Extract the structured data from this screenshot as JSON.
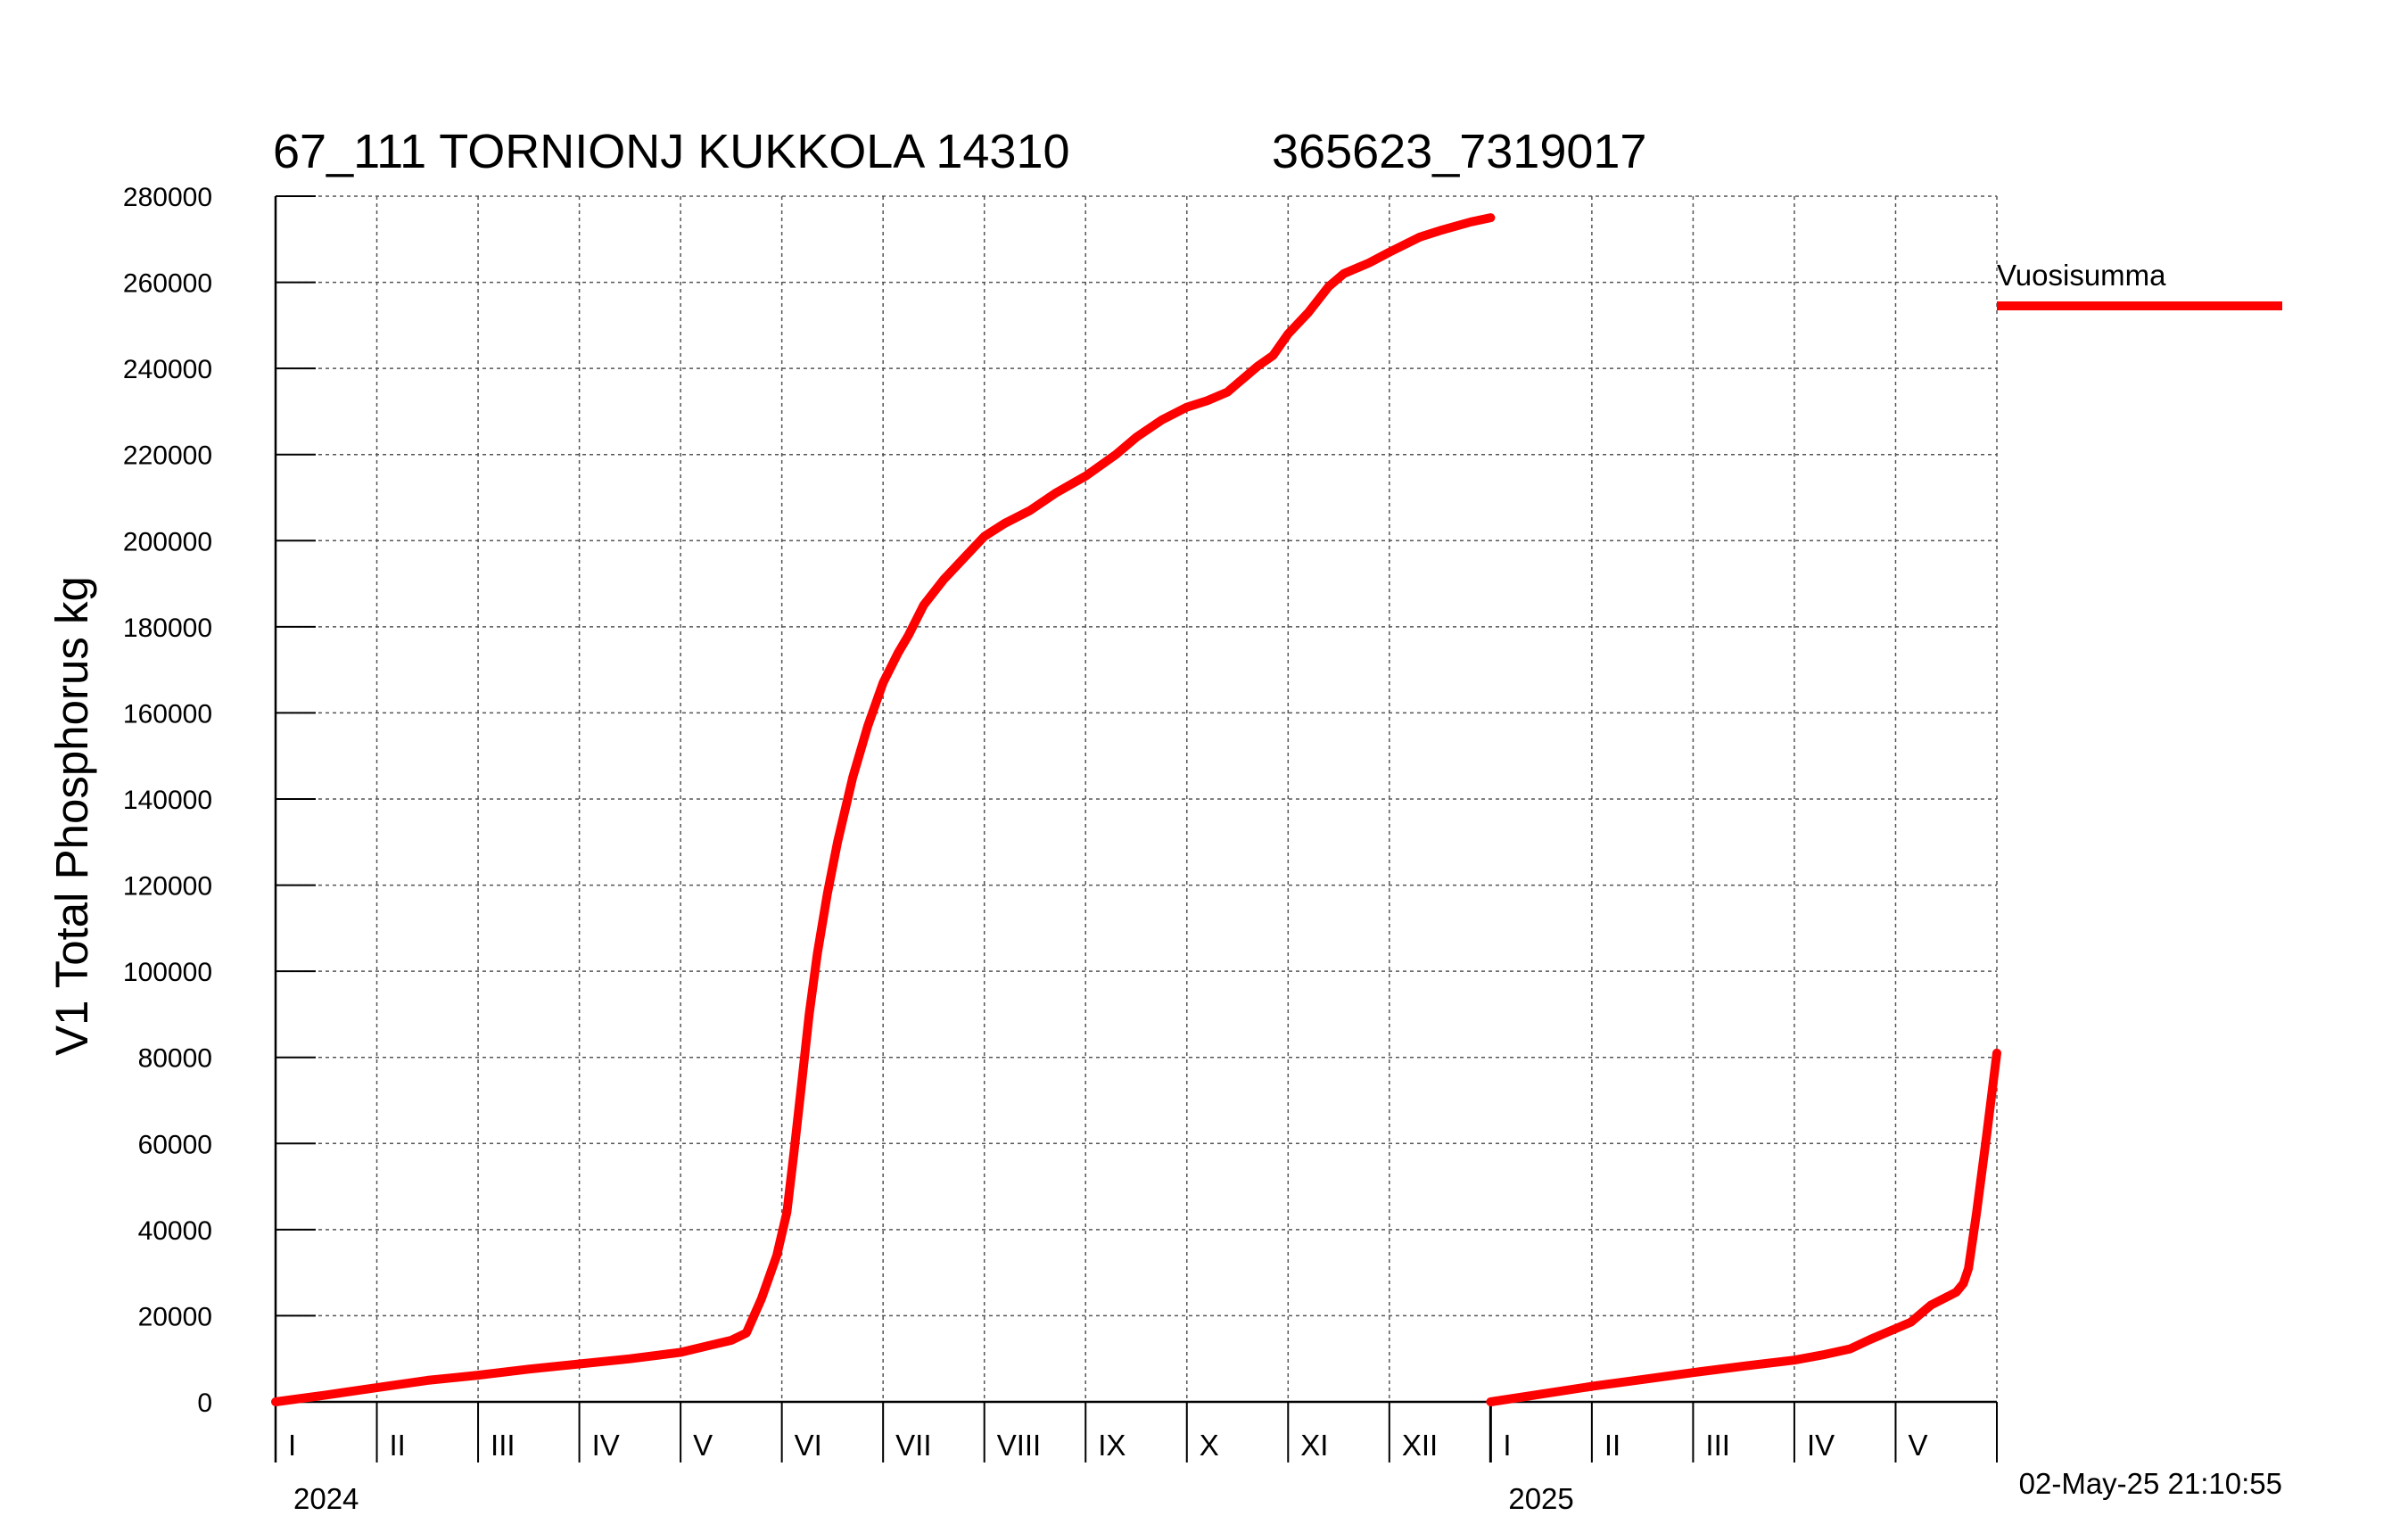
{
  "chart_data": {
    "type": "line",
    "title": "67_111 TORNIONJ KUKKOLA 14310",
    "title_code": "365623_7319017",
    "ylabel": "V1 Total Phosphorus kg",
    "ylim": [
      0,
      280000
    ],
    "yticks": [
      "0",
      "20000",
      "40000",
      "60000",
      "80000",
      "100000",
      "120000",
      "140000",
      "160000",
      "180000",
      "200000",
      "220000",
      "240000",
      "260000",
      "280000"
    ],
    "xlim_months": [
      0,
      17
    ],
    "month_labels": [
      "I",
      "II",
      "III",
      "IV",
      "V",
      "VI",
      "VII",
      "VIII",
      "IX",
      "X",
      "XI",
      "XII",
      "I",
      "II",
      "III",
      "IV",
      "V"
    ],
    "year_labels": [
      {
        "label": "2024",
        "at_month": 0
      },
      {
        "label": "2025",
        "at_month": 12
      }
    ],
    "legend": {
      "label": "Vuosisumma",
      "color": "#ff0000"
    },
    "timestamp": "02-May-25 21:10:55",
    "series": [
      {
        "name": "Vuosisumma",
        "color": "#ff0000",
        "segments": [
          {
            "year": "2024",
            "points": [
              [
                0.0,
                0
              ],
              [
                0.5,
                1600
              ],
              [
                1.0,
                3300
              ],
              [
                1.5,
                5000
              ],
              [
                2.0,
                6200
              ],
              [
                2.5,
                7600
              ],
              [
                3.0,
                8800
              ],
              [
                3.5,
                10000
              ],
              [
                4.0,
                11500
              ],
              [
                4.3,
                13200
              ],
              [
                4.5,
                14300
              ],
              [
                4.65,
                16000
              ],
              [
                4.8,
                24000
              ],
              [
                4.95,
                34000
              ],
              [
                5.05,
                44000
              ],
              [
                5.12,
                58000
              ],
              [
                5.2,
                75000
              ],
              [
                5.27,
                90000
              ],
              [
                5.35,
                104000
              ],
              [
                5.45,
                118000
              ],
              [
                5.55,
                130000
              ],
              [
                5.7,
                145000
              ],
              [
                5.85,
                157000
              ],
              [
                6.0,
                167000
              ],
              [
                6.15,
                174000
              ],
              [
                6.25,
                178000
              ],
              [
                6.4,
                185000
              ],
              [
                6.6,
                191000
              ],
              [
                6.8,
                196000
              ],
              [
                7.0,
                201000
              ],
              [
                7.2,
                204000
              ],
              [
                7.45,
                207000
              ],
              [
                7.7,
                211000
              ],
              [
                8.0,
                215000
              ],
              [
                8.3,
                220000
              ],
              [
                8.5,
                224000
              ],
              [
                8.75,
                228000
              ],
              [
                9.0,
                231000
              ],
              [
                9.2,
                232500
              ],
              [
                9.4,
                234500
              ],
              [
                9.5,
                236500
              ],
              [
                9.7,
                240500
              ],
              [
                9.85,
                243000
              ],
              [
                10.0,
                248000
              ],
              [
                10.2,
                253000
              ],
              [
                10.4,
                259000
              ],
              [
                10.55,
                262000
              ],
              [
                10.8,
                264500
              ],
              [
                11.0,
                267000
              ],
              [
                11.3,
                270500
              ],
              [
                11.5,
                272000
              ],
              [
                11.8,
                274000
              ],
              [
                12.0,
                275000
              ]
            ]
          },
          {
            "year": "2025",
            "points": [
              [
                12.0,
                0
              ],
              [
                12.5,
                1800
              ],
              [
                13.0,
                3600
              ],
              [
                13.5,
                5200
              ],
              [
                14.0,
                6800
              ],
              [
                14.5,
                8300
              ],
              [
                15.0,
                9700
              ],
              [
                15.3,
                11000
              ],
              [
                15.55,
                12300
              ],
              [
                15.75,
                14500
              ],
              [
                15.95,
                16500
              ],
              [
                16.15,
                18500
              ],
              [
                16.35,
                22500
              ],
              [
                16.6,
                25500
              ],
              [
                16.67,
                27500
              ],
              [
                16.72,
                31000
              ],
              [
                16.8,
                44000
              ],
              [
                16.9,
                62000
              ],
              [
                17.0,
                81000
              ]
            ]
          }
        ]
      }
    ]
  }
}
